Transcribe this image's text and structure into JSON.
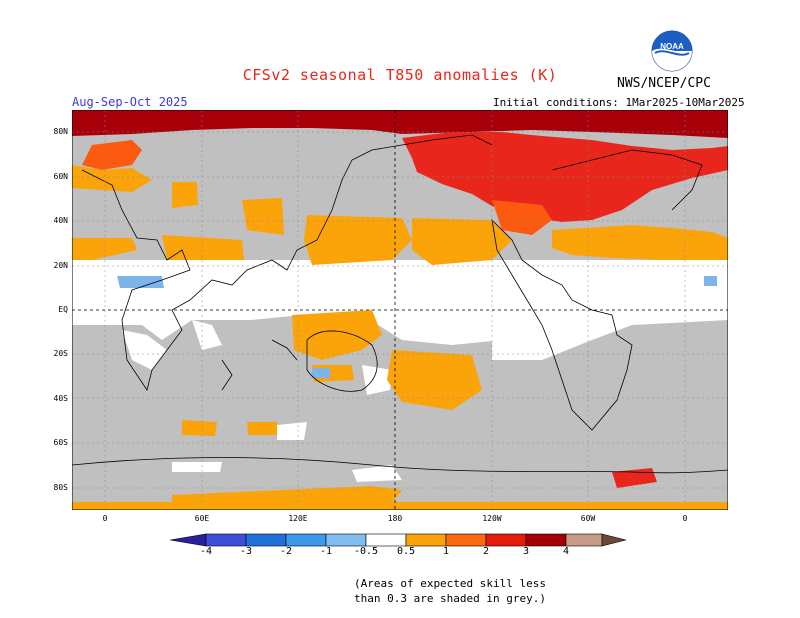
{
  "header": {
    "title": "CFSv2 seasonal T850 anomalies (K)",
    "agency": "NWS/NCEP/CPC",
    "logo_text": "NOAA",
    "season": "Aug-Sep-Oct 2025",
    "initial_conditions": "Initial conditions: 1Mar2025-10Mar2025"
  },
  "axes": {
    "y_ticks": [
      "80N",
      "60N",
      "40N",
      "20N",
      "EQ",
      "20S",
      "40S",
      "60S",
      "80S"
    ],
    "x_ticks": [
      "0",
      "60E",
      "120E",
      "180",
      "120W",
      "60W",
      "0"
    ]
  },
  "colorbar": {
    "labels": [
      "-4",
      "-3",
      "-2",
      "-1",
      "-0.5",
      "0.5",
      "1",
      "2",
      "3",
      "4"
    ],
    "colors": [
      "#2b1f9e",
      "#3a4fd6",
      "#1f6fd8",
      "#3d98ea",
      "#82bdf2",
      "#ffffff",
      "#fba40a",
      "#fb6a10",
      "#e41c0c",
      "#a5000a",
      "#c79b88",
      "#6b4837"
    ]
  },
  "note": {
    "line1": "(Areas of expected skill less",
    "line2": "than 0.3 are shaded in grey.)"
  },
  "palette": {
    "grey": "#c0c0c0",
    "orange": "#fba40a",
    "orange_red": "#fb5a10",
    "red": "#e8261b",
    "dark_red": "#a8000a",
    "light_blue": "#7db5ea"
  }
}
